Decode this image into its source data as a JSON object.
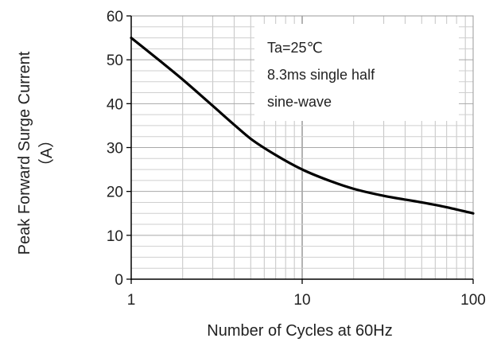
{
  "chart_data": {
    "type": "line",
    "x_scale": "log",
    "xlim": [
      1,
      100
    ],
    "ylim": [
      0,
      60
    ],
    "x_ticks": [
      1,
      10,
      100
    ],
    "x_tick_labels": [
      "1",
      "10",
      "100"
    ],
    "y_ticks": [
      0,
      10,
      20,
      30,
      40,
      50,
      60
    ],
    "y_tick_labels": [
      "0",
      "10",
      "20",
      "30",
      "40",
      "50",
      "60"
    ],
    "xlabel": "Number of Cycles at 60Hz",
    "ylabel": "Peak Forward Surge Current",
    "ylabel_unit": "（A）",
    "grid": true,
    "annotation_lines": [
      "Ta=25℃",
      "8.3ms single half",
      "sine-wave"
    ],
    "series": [
      {
        "color": "#000000",
        "x": [
          1,
          1.5,
          2,
          3,
          4,
          5,
          7,
          10,
          15,
          20,
          30,
          50,
          70,
          100
        ],
        "y": [
          55,
          49.5,
          45.5,
          39.5,
          35.2,
          32,
          28.3,
          25,
          22.2,
          20.6,
          19,
          17.5,
          16.4,
          15
        ]
      }
    ]
  }
}
